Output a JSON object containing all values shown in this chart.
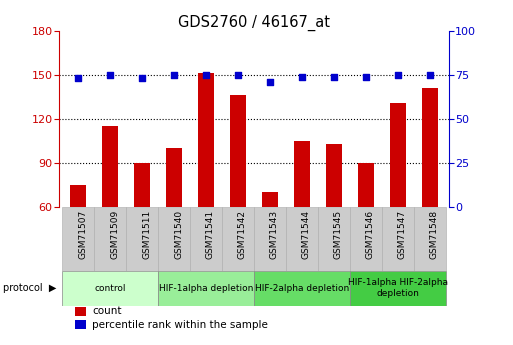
{
  "title": "GDS2760 / 46167_at",
  "samples": [
    "GSM71507",
    "GSM71509",
    "GSM71511",
    "GSM71540",
    "GSM71541",
    "GSM71542",
    "GSM71543",
    "GSM71544",
    "GSM71545",
    "GSM71546",
    "GSM71547",
    "GSM71548"
  ],
  "counts": [
    75,
    115,
    90,
    100,
    151,
    136,
    70,
    105,
    103,
    90,
    131,
    141
  ],
  "percentile_ranks": [
    73,
    75,
    73,
    75,
    75,
    75,
    71,
    74,
    74,
    74,
    75,
    75
  ],
  "ylim_left": [
    60,
    180
  ],
  "ylim_right": [
    0,
    100
  ],
  "yticks_left": [
    60,
    90,
    120,
    150,
    180
  ],
  "yticks_right": [
    0,
    25,
    50,
    75,
    100
  ],
  "bar_color": "#cc0000",
  "scatter_color": "#0000cc",
  "grid_color": "#000000",
  "protocol_groups": [
    {
      "label": "control",
      "start": 0,
      "end": 2,
      "color": "#ccffcc"
    },
    {
      "label": "HIF-1alpha depletion",
      "start": 3,
      "end": 5,
      "color": "#99ee99"
    },
    {
      "label": "HIF-2alpha depletion",
      "start": 6,
      "end": 8,
      "color": "#66dd66"
    },
    {
      "label": "HIF-1alpha HIF-2alpha\ndepletion",
      "start": 9,
      "end": 11,
      "color": "#44cc44"
    }
  ],
  "legend_items": [
    {
      "label": "count",
      "color": "#cc0000"
    },
    {
      "label": "percentile rank within the sample",
      "color": "#0000cc"
    }
  ],
  "background_color": "#ffffff",
  "bar_width": 0.5,
  "tick_label_bg": "#cccccc"
}
